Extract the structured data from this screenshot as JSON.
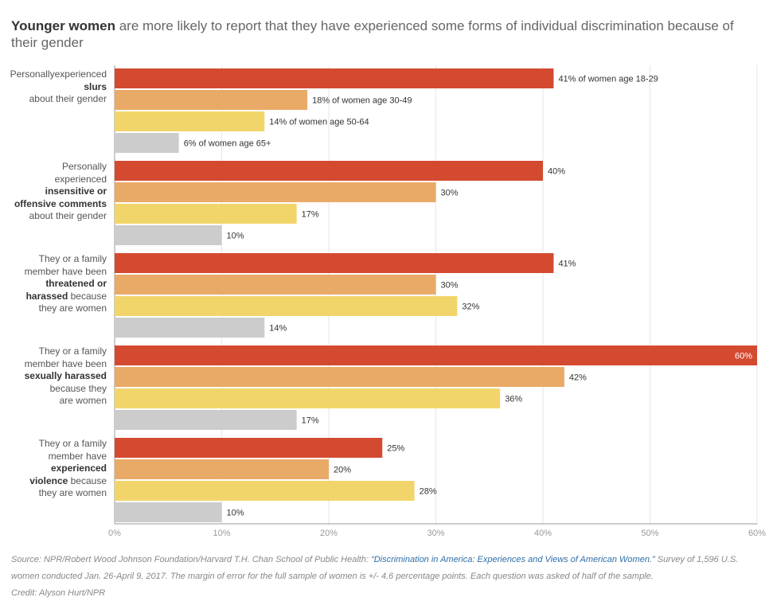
{
  "title": {
    "bold": "Younger women",
    "rest": " are more likely to report that they have experienced some forms of individual discrimination because of their gender"
  },
  "colors": {
    "age_18_29": "#d44a30",
    "age_30_49": "#eaaa67",
    "age_50_64": "#f2d56a",
    "age_65_plus": "#cccccc"
  },
  "chart_data": {
    "type": "bar",
    "orientation": "horizontal",
    "categories": [
      [
        {
          "t": "Personally",
          "b": false
        },
        {
          "t": "experienced ",
          "b": false
        },
        {
          "t": "slurs",
          "b": true
        },
        {
          "t": "|about their gender",
          "b": false
        }
      ],
      [
        {
          "t": "Personally",
          "b": false
        },
        {
          "t": "|experienced",
          "b": false
        },
        {
          "t": "|insensitive or",
          "b": true
        },
        {
          "t": "|offensive comments",
          "b": true
        },
        {
          "t": "|about their gender",
          "b": false
        }
      ],
      [
        {
          "t": "They or a family",
          "b": false
        },
        {
          "t": "|member have been",
          "b": false
        },
        {
          "t": "|threatened or",
          "b": true
        },
        {
          "t": "|harassed",
          "b": true
        },
        {
          "t": " because",
          "b": false
        },
        {
          "t": "|they are women",
          "b": false
        }
      ],
      [
        {
          "t": "They or a family",
          "b": false
        },
        {
          "t": "|member have been",
          "b": false
        },
        {
          "t": "|sexually harassed",
          "b": true
        },
        {
          "t": "|because they",
          "b": false
        },
        {
          "t": "|are women",
          "b": false
        }
      ],
      [
        {
          "t": "They or a family",
          "b": false
        },
        {
          "t": "|member have",
          "b": false
        },
        {
          "t": "|experienced",
          "b": true
        },
        {
          "t": "|violence",
          "b": true
        },
        {
          "t": " because",
          "b": false
        },
        {
          "t": "|they are women",
          "b": false
        }
      ]
    ],
    "series": [
      {
        "name": "women age 18-29",
        "color_key": "age_18_29",
        "values": [
          41,
          40,
          41,
          60,
          25
        ]
      },
      {
        "name": "women age 30-49",
        "color_key": "age_30_49",
        "values": [
          18,
          30,
          30,
          42,
          20
        ]
      },
      {
        "name": "women age 50-64",
        "color_key": "age_50_64",
        "values": [
          14,
          17,
          32,
          36,
          28
        ]
      },
      {
        "name": "women age 65+",
        "color_key": "age_65_plus",
        "values": [
          6,
          10,
          14,
          17,
          10
        ]
      }
    ],
    "first_group_label_format": "{v}% of {name}",
    "other_label_format": "{v}%",
    "xlim": [
      0,
      60
    ],
    "xticks": [
      0,
      10,
      20,
      30,
      40,
      50,
      60
    ],
    "xtick_suffix": "%",
    "grid": true
  },
  "footer": {
    "source_prefix": "Source: NPR/Robert Wood Johnson Foundation/Harvard T.H. Chan School of Public Health: ",
    "source_link": "“Discrimination in America: Experiences and Views of American Women.”",
    "source_suffix": " Survey of 1,596 U.S. women conducted Jan. 26-April 9, 2017. The margin of error for the full sample of women is +/- 4.6 percentage points. Each question was asked of half of the sample.",
    "credit": "Credit: Alyson Hurt/NPR"
  }
}
